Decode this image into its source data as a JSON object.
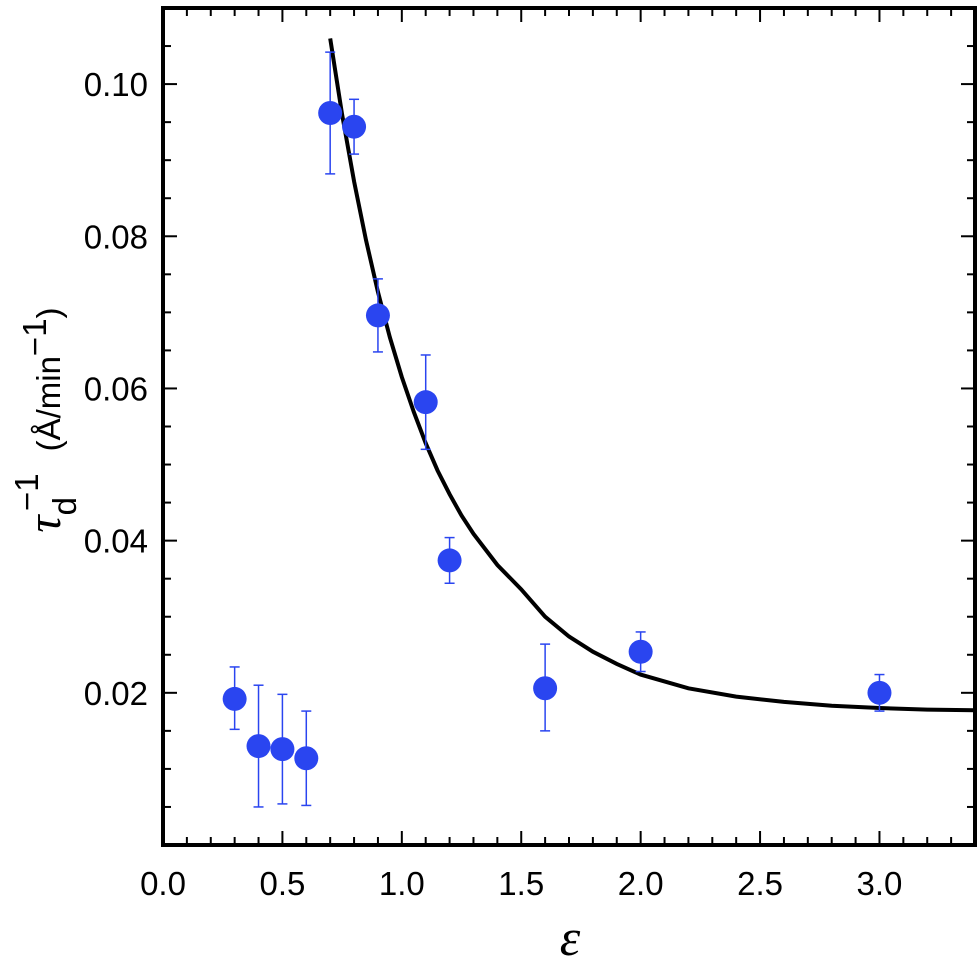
{
  "chart_data": {
    "type": "scatter",
    "xlabel": "ε",
    "ylabel": {
      "symbol": "τ",
      "subscript": "d",
      "superscript": "−1",
      "units_open": "(Å/min",
      "units_sup": "−1",
      "units_close": ")"
    },
    "xlim": [
      0.0,
      3.4
    ],
    "ylim": [
      0.0,
      0.11
    ],
    "x_ticks": [
      "0.0",
      "0.5",
      "1.0",
      "1.5",
      "2.0",
      "2.5",
      "3.0"
    ],
    "x_tick_values": [
      0.0,
      0.5,
      1.0,
      1.5,
      2.0,
      2.5,
      3.0
    ],
    "y_ticks": [
      "0.02",
      "0.04",
      "0.06",
      "0.08",
      "0.10"
    ],
    "y_tick_values": [
      0.02,
      0.04,
      0.06,
      0.08,
      0.1
    ],
    "series": [
      {
        "kind": "points_with_error",
        "color": "#2a45f0",
        "points": [
          {
            "x": 0.3,
            "y": 0.0192,
            "err_low": 0.004,
            "err_high": 0.0042
          },
          {
            "x": 0.4,
            "y": 0.013,
            "err_low": 0.008,
            "err_high": 0.008
          },
          {
            "x": 0.5,
            "y": 0.0126,
            "err_low": 0.0072,
            "err_high": 0.0072
          },
          {
            "x": 0.6,
            "y": 0.0114,
            "err_low": 0.0062,
            "err_high": 0.0062
          },
          {
            "x": 0.7,
            "y": 0.0962,
            "err_low": 0.008,
            "err_high": 0.008
          },
          {
            "x": 0.8,
            "y": 0.0944,
            "err_low": 0.0036,
            "err_high": 0.0036
          },
          {
            "x": 0.9,
            "y": 0.0696,
            "err_low": 0.0048,
            "err_high": 0.0048
          },
          {
            "x": 1.1,
            "y": 0.0582,
            "err_low": 0.0062,
            "err_high": 0.0062
          },
          {
            "x": 1.2,
            "y": 0.0374,
            "err_low": 0.003,
            "err_high": 0.003
          },
          {
            "x": 1.6,
            "y": 0.0206,
            "err_low": 0.0056,
            "err_high": 0.0058
          },
          {
            "x": 2.0,
            "y": 0.0254,
            "err_low": 0.0026,
            "err_high": 0.0026
          },
          {
            "x": 3.0,
            "y": 0.02,
            "err_low": 0.0024,
            "err_high": 0.0024
          }
        ]
      },
      {
        "kind": "fit_curve",
        "color": "#000000",
        "x": [
          0.7,
          0.75,
          0.8,
          0.85,
          0.9,
          0.95,
          1.0,
          1.05,
          1.1,
          1.15,
          1.2,
          1.25,
          1.3,
          1.4,
          1.5,
          1.6,
          1.7,
          1.8,
          1.9,
          2.0,
          2.2,
          2.4,
          2.6,
          2.8,
          3.0,
          3.2,
          3.4
        ],
        "y": [
          0.106,
          0.096,
          0.0872,
          0.0795,
          0.0727,
          0.0667,
          0.0615,
          0.0569,
          0.0528,
          0.0492,
          0.0461,
          0.0433,
          0.0409,
          0.0368,
          0.0336,
          0.03,
          0.0274,
          0.0254,
          0.0238,
          0.0224,
          0.0206,
          0.0195,
          0.0188,
          0.0183,
          0.018,
          0.0178,
          0.0177
        ]
      }
    ]
  }
}
